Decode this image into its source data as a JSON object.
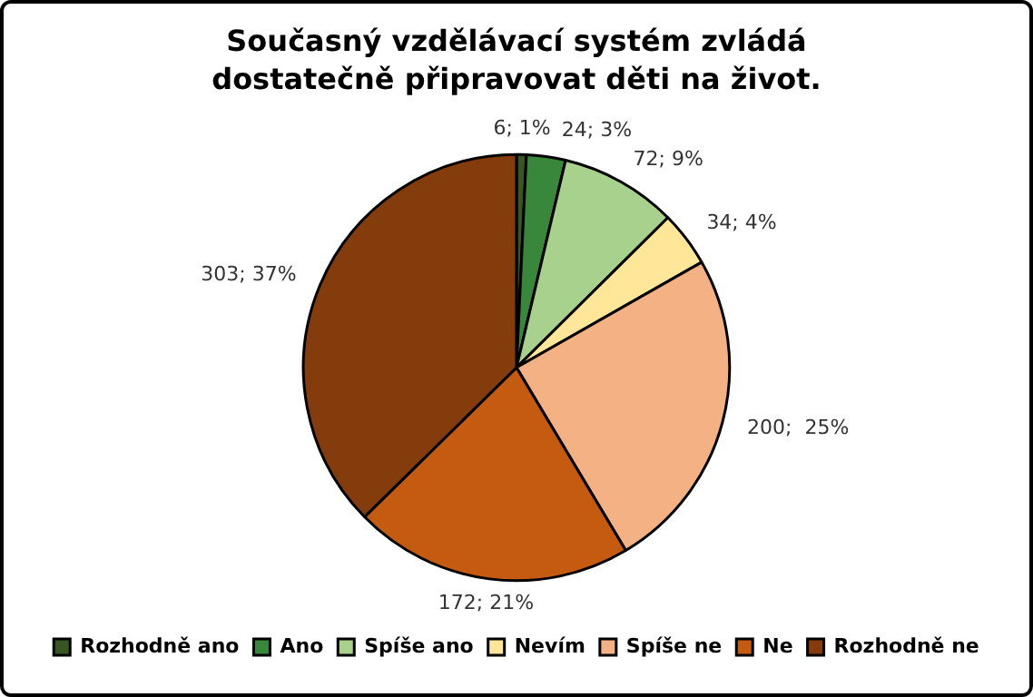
{
  "chart_data": {
    "type": "pie",
    "title": "Současný vzdělávací systém zvládá dostatečně připravovat děti na život.",
    "categories": [
      "Rozhodně ano",
      "Ano",
      "Spíše ano",
      "Nevím",
      "Spíše ne",
      "Ne",
      "Rozhodně ne"
    ],
    "values": [
      6,
      24,
      72,
      34,
      200,
      172,
      303
    ],
    "colors": [
      "#375623",
      "#38873a",
      "#a9d18e",
      "#ffe699",
      "#f4b183",
      "#c55a11",
      "#843c0c"
    ],
    "value_labels": [
      "6; 1%",
      "24; 3%",
      "72; 9%",
      "34; 4%",
      "200;  25%",
      "172; 21%",
      "303; 37%"
    ],
    "legend": "bottom"
  }
}
